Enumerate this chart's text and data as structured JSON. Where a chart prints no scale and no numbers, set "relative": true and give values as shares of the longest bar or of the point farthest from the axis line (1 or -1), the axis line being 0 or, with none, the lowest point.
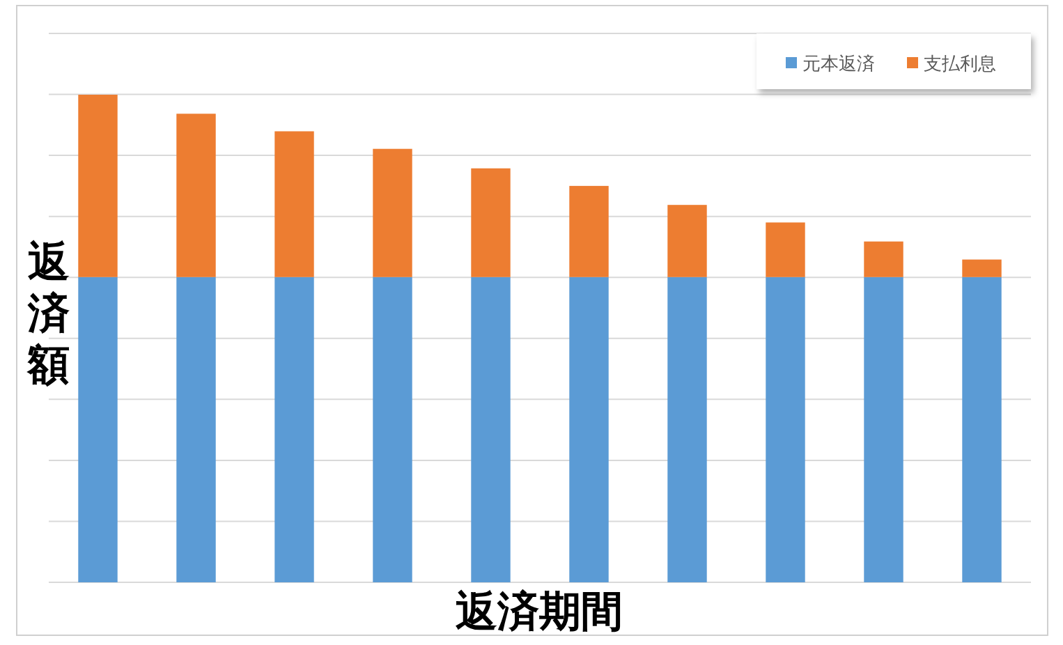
{
  "chart_data": {
    "type": "bar",
    "stacked": true,
    "relative": true,
    "xlabel": "返済期間",
    "ylabel": "返済額",
    "categories": [
      null,
      null,
      null,
      null,
      null,
      null,
      null,
      null,
      null,
      null
    ],
    "grid": "y",
    "legend": "top right",
    "series": [
      {
        "name": "元本返済",
        "color": "#5b9bd5",
        "values": [
          0.626,
          0.626,
          0.626,
          0.626,
          0.626,
          0.626,
          0.626,
          0.626,
          0.626,
          0.626
        ]
      },
      {
        "name": "支払利息",
        "color": "#ed7d31",
        "values": [
          0.374,
          0.335,
          0.299,
          0.263,
          0.223,
          0.187,
          0.148,
          0.112,
          0.073,
          0.036
        ]
      }
    ]
  }
}
